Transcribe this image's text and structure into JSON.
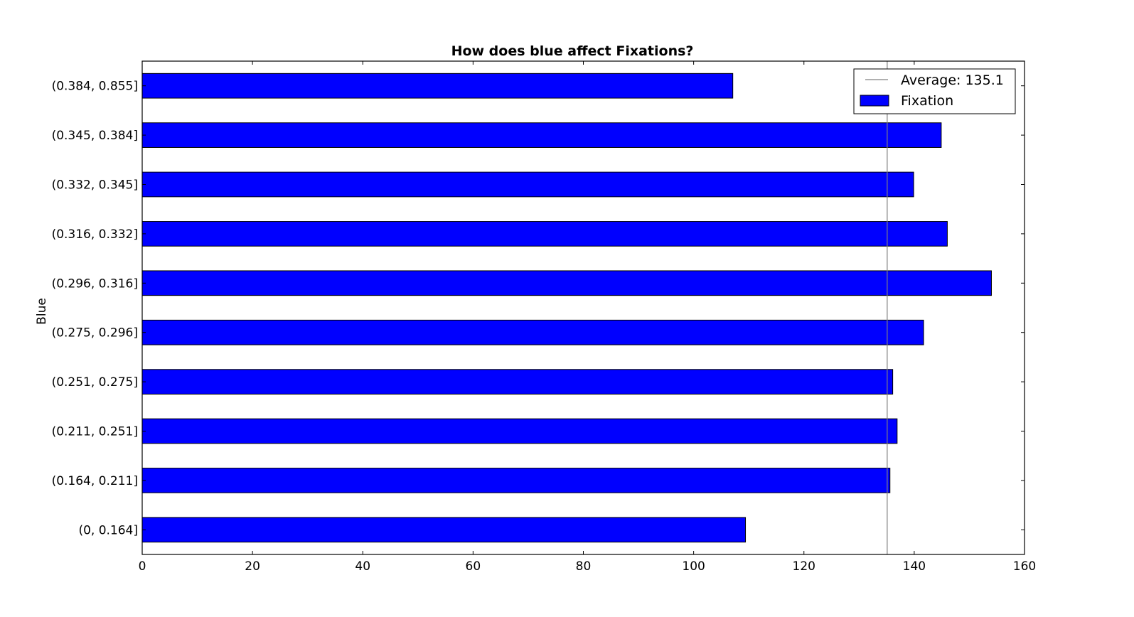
{
  "chart_data": {
    "type": "bar",
    "orientation": "horizontal",
    "title": "How does blue affect Fixations?",
    "xlabel": "",
    "ylabel": "Blue",
    "xlim": [
      0,
      160
    ],
    "xticks": [
      0,
      20,
      40,
      60,
      80,
      100,
      120,
      140,
      160
    ],
    "grid": false,
    "legend_position": "top-right",
    "categories": [
      "(0, 0.164]",
      "(0.164, 0.211]",
      "(0.211, 0.251]",
      "(0.251, 0.275]",
      "(0.275, 0.296]",
      "(0.296, 0.316]",
      "(0.316, 0.332]",
      "(0.332, 0.345]",
      "(0.345, 0.384]",
      "(0.384, 0.855]"
    ],
    "series": [
      {
        "name": "Fixation",
        "color": "#0000ff",
        "values": [
          109.4,
          135.6,
          136.9,
          136.1,
          141.7,
          154.0,
          146.0,
          139.9,
          144.9,
          107.1
        ]
      }
    ],
    "reference_line": {
      "label": "Average: 135.1",
      "value": 135.1,
      "color": "#808080"
    }
  }
}
